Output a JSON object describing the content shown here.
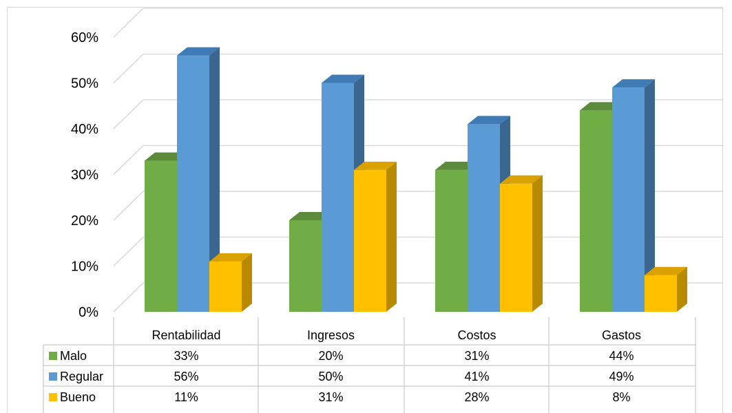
{
  "chart_data": {
    "type": "bar",
    "subtype": "3d-clustered-column-with-data-table",
    "categories": [
      "Rentabilidad",
      "Ingresos",
      "Costos",
      "Gastos"
    ],
    "series": [
      {
        "name": "Malo",
        "values": [
          33,
          20,
          31,
          44
        ],
        "labels": [
          "33%",
          "20%",
          "31%",
          "44%"
        ],
        "color": "#70ad47",
        "top_color": "#5a8a3a",
        "side_color": "#507d33"
      },
      {
        "name": "Regular",
        "values": [
          56,
          50,
          41,
          49
        ],
        "labels": [
          "56%",
          "50%",
          "41%",
          "49%"
        ],
        "color": "#5b9bd5",
        "top_color": "#3f7bb5",
        "side_color": "#3b6690"
      },
      {
        "name": "Bueno",
        "values": [
          11,
          31,
          28,
          8
        ],
        "labels": [
          "11%",
          "31%",
          "28%",
          "8%"
        ],
        "color": "#ffc000",
        "top_color": "#d9a200",
        "side_color": "#b88a00"
      }
    ],
    "ylim": [
      0,
      60
    ],
    "yticks": [
      "0%",
      "10%",
      "20%",
      "30%",
      "40%",
      "50%",
      "60%"
    ],
    "grid": true,
    "legend": "data-table-left",
    "colors": {
      "gridline": "#d9d9d9",
      "table_border": "#bfbfbf"
    }
  }
}
